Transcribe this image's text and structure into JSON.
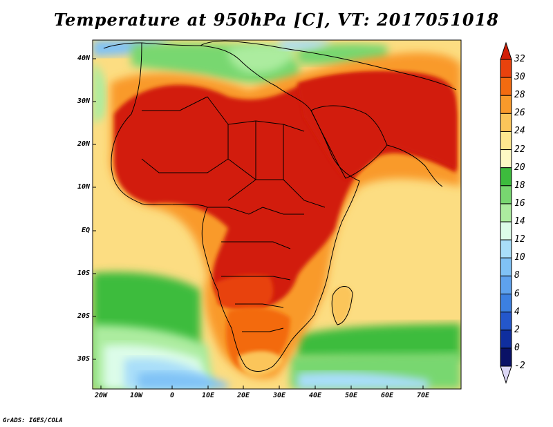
{
  "title": "Temperature at 950hPa [C], VT: 2017051018",
  "credit": "GrADS: IGES/COLA",
  "axes": {
    "lat_labels": [
      "40N",
      "30N",
      "20N",
      "10N",
      "EQ",
      "10S",
      "20S",
      "30S"
    ],
    "lon_labels": [
      "20W",
      "10W",
      "0",
      "10E",
      "20E",
      "30E",
      "40E",
      "50E",
      "60E",
      "70E"
    ],
    "lat_range": [
      -36,
      45
    ],
    "lon_range": [
      -23,
      80
    ]
  },
  "colorbar": {
    "labels": [
      "32",
      "30",
      "28",
      "26",
      "24",
      "22",
      "20",
      "18",
      "16",
      "14",
      "12",
      "10",
      "8",
      "6",
      "4",
      "2",
      "0",
      "-2"
    ],
    "colors": [
      "#d21f07",
      "#e8420d",
      "#f36b10",
      "#f99a2b",
      "#fbc55a",
      "#fde88f",
      "#fef9c4",
      "#3dbc3d",
      "#78d770",
      "#acec9f",
      "#dcfce9",
      "#a9def9",
      "#80c2f6",
      "#5ea2ee",
      "#3c80e1",
      "#2457cb",
      "#0f2e9e",
      "#0a1166"
    ]
  },
  "colors": {
    "ocean_warm": "#fde88f",
    "land_hot": "#d21f07",
    "south_ocean": "#78d770",
    "cold_ocean": "#80c2f6"
  }
}
